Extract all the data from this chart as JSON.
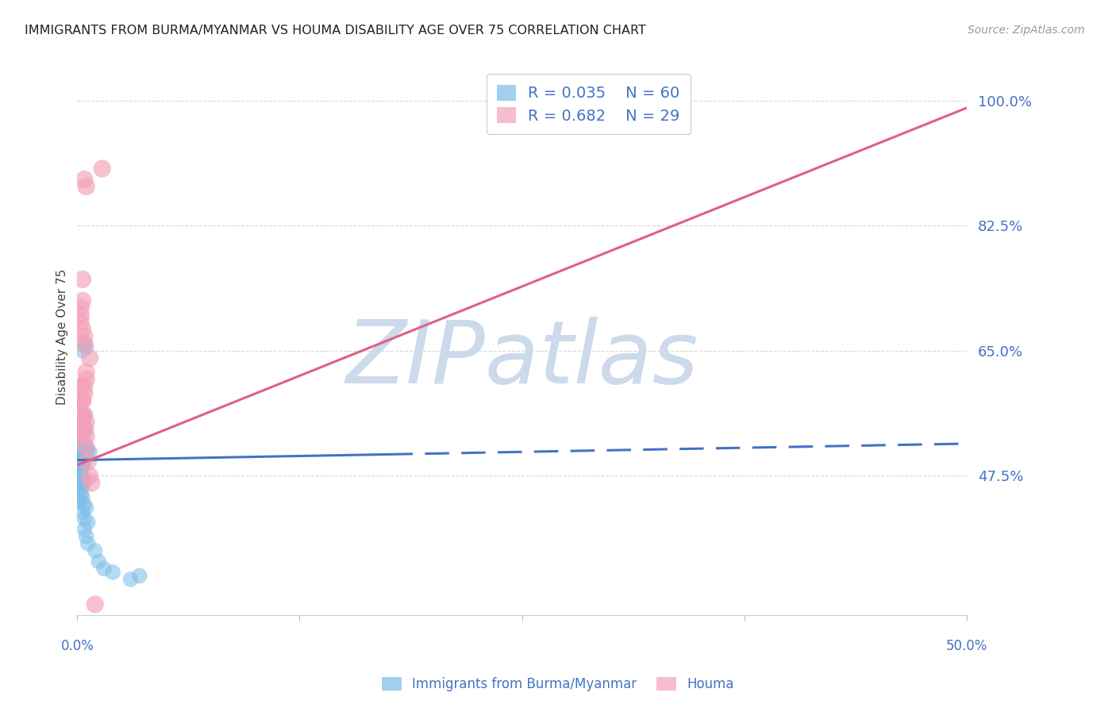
{
  "title": "IMMIGRANTS FROM BURMA/MYANMAR VS HOUMA DISABILITY AGE OVER 75 CORRELATION CHART",
  "source": "Source: ZipAtlas.com",
  "ylabel": "Disability Age Over 75",
  "yticks": [
    0.475,
    0.65,
    0.825,
    1.0
  ],
  "ytick_labels": [
    "47.5%",
    "65.0%",
    "82.5%",
    "100.0%"
  ],
  "xlim": [
    0.0,
    0.5
  ],
  "ylim": [
    0.28,
    1.06
  ],
  "legend_blue_R": "R = 0.035",
  "legend_blue_N": "N = 60",
  "legend_pink_R": "R = 0.682",
  "legend_pink_N": "N = 29",
  "blue_color": "#7bbde8",
  "pink_color": "#f4a0b8",
  "blue_scatter": [
    [
      0.001,
      0.5
    ],
    [
      0.002,
      0.498
    ],
    [
      0.003,
      0.495
    ],
    [
      0.001,
      0.51
    ],
    [
      0.002,
      0.505
    ],
    [
      0.003,
      0.515
    ],
    [
      0.004,
      0.52
    ],
    [
      0.001,
      0.49
    ],
    [
      0.002,
      0.488
    ],
    [
      0.003,
      0.492
    ],
    [
      0.003,
      0.545
    ],
    [
      0.004,
      0.56
    ],
    [
      0.005,
      0.54
    ],
    [
      0.003,
      0.65
    ],
    [
      0.004,
      0.66
    ],
    [
      0.005,
      0.655
    ],
    [
      0.001,
      0.47
    ],
    [
      0.002,
      0.465
    ],
    [
      0.003,
      0.46
    ],
    [
      0.001,
      0.455
    ],
    [
      0.002,
      0.45
    ],
    [
      0.003,
      0.445
    ],
    [
      0.001,
      0.44
    ],
    [
      0.004,
      0.435
    ],
    [
      0.005,
      0.43
    ],
    [
      0.003,
      0.425
    ],
    [
      0.004,
      0.415
    ],
    [
      0.006,
      0.41
    ],
    [
      0.004,
      0.4
    ],
    [
      0.005,
      0.39
    ],
    [
      0.006,
      0.38
    ],
    [
      0.01,
      0.37
    ],
    [
      0.012,
      0.355
    ],
    [
      0.015,
      0.345
    ],
    [
      0.02,
      0.34
    ],
    [
      0.03,
      0.33
    ],
    [
      0.035,
      0.335
    ],
    [
      0.002,
      0.52
    ],
    [
      0.003,
      0.525
    ],
    [
      0.004,
      0.505
    ],
    [
      0.004,
      0.51
    ],
    [
      0.005,
      0.515
    ],
    [
      0.006,
      0.51
    ],
    [
      0.007,
      0.508
    ],
    [
      0.001,
      0.502
    ],
    [
      0.002,
      0.499
    ],
    [
      0.003,
      0.497
    ],
    [
      0.004,
      0.494
    ],
    [
      0.001,
      0.503
    ],
    [
      0.002,
      0.496
    ],
    [
      0.003,
      0.491
    ],
    [
      0.002,
      0.485
    ],
    [
      0.001,
      0.48
    ],
    [
      0.002,
      0.478
    ],
    [
      0.003,
      0.476
    ],
    [
      0.002,
      0.474
    ],
    [
      0.001,
      0.472
    ],
    [
      0.003,
      0.47
    ],
    [
      0.002,
      0.468
    ],
    [
      0.004,
      0.466
    ]
  ],
  "pink_scatter": [
    [
      0.001,
      0.54
    ],
    [
      0.002,
      0.56
    ],
    [
      0.003,
      0.58
    ],
    [
      0.004,
      0.6
    ],
    [
      0.005,
      0.62
    ],
    [
      0.003,
      0.58
    ],
    [
      0.004,
      0.59
    ],
    [
      0.005,
      0.61
    ],
    [
      0.002,
      0.71
    ],
    [
      0.003,
      0.72
    ],
    [
      0.002,
      0.7
    ],
    [
      0.002,
      0.69
    ],
    [
      0.003,
      0.68
    ],
    [
      0.004,
      0.66
    ],
    [
      0.004,
      0.67
    ],
    [
      0.007,
      0.64
    ],
    [
      0.001,
      0.53
    ],
    [
      0.002,
      0.545
    ],
    [
      0.003,
      0.555
    ],
    [
      0.004,
      0.56
    ],
    [
      0.005,
      0.55
    ],
    [
      0.004,
      0.54
    ],
    [
      0.005,
      0.53
    ],
    [
      0.005,
      0.515
    ],
    [
      0.006,
      0.495
    ],
    [
      0.007,
      0.475
    ],
    [
      0.008,
      0.465
    ],
    [
      0.01,
      0.295
    ],
    [
      0.014,
      0.905
    ],
    [
      0.003,
      0.75
    ],
    [
      0.002,
      0.6
    ],
    [
      0.001,
      0.57
    ],
    [
      0.004,
      0.89
    ],
    [
      0.005,
      0.88
    ]
  ],
  "blue_trendline_solid": [
    [
      0.0,
      0.497
    ],
    [
      0.175,
      0.505
    ]
  ],
  "blue_trendline_dashed": [
    [
      0.175,
      0.505
    ],
    [
      0.5,
      0.52
    ]
  ],
  "pink_trendline": [
    [
      0.0,
      0.49
    ],
    [
      0.5,
      0.99
    ]
  ],
  "watermark": "ZIPatlas",
  "watermark_color": "#ccdaeb",
  "background_color": "#ffffff",
  "grid_color": "#d8d8d8",
  "axis_label_color": "#4472c4"
}
